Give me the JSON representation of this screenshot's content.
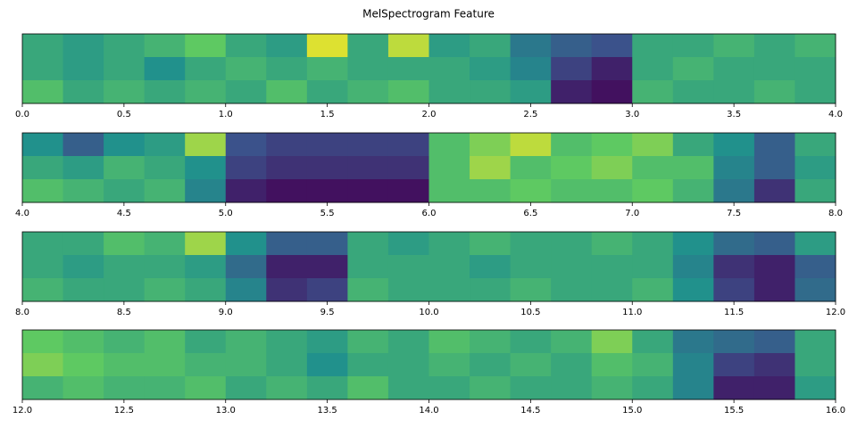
{
  "title": "MelSpectrogram Feature",
  "chart_data": [
    {
      "type": "heatmap",
      "colormap": "viridis",
      "xlim": [
        0,
        4
      ],
      "xticks": [
        {
          "value": 0,
          "label": "0.0"
        },
        0.5,
        {
          "value": 1,
          "label": "1.0"
        },
        1.5,
        {
          "value": 2,
          "label": "2.0"
        },
        2.5,
        {
          "value": 3,
          "label": "3.0"
        },
        3.5,
        {
          "value": 4,
          "label": "4.0"
        }
      ],
      "values": [
        [
          0.6,
          0.55,
          0.6,
          0.65,
          0.75,
          0.6,
          0.55,
          0.95,
          0.6,
          0.9,
          0.55,
          0.6,
          0.4,
          0.3,
          0.25,
          0.6,
          0.6,
          0.65,
          0.6,
          0.65
        ],
        [
          0.6,
          0.55,
          0.6,
          0.5,
          0.6,
          0.65,
          0.6,
          0.65,
          0.6,
          0.6,
          0.6,
          0.55,
          0.45,
          0.2,
          0.1,
          0.6,
          0.65,
          0.6,
          0.6,
          0.6
        ],
        [
          0.7,
          0.6,
          0.65,
          0.6,
          0.65,
          0.6,
          0.7,
          0.6,
          0.65,
          0.7,
          0.6,
          0.6,
          0.55,
          0.1,
          0.05,
          0.65,
          0.6,
          0.6,
          0.65,
          0.6
        ]
      ]
    },
    {
      "type": "heatmap",
      "colormap": "viridis",
      "xlim": [
        4,
        8
      ],
      "xticks": [
        {
          "value": 4,
          "label": "4.0"
        },
        4.5,
        {
          "value": 5,
          "label": "5.0"
        },
        5.5,
        {
          "value": 6,
          "label": "6.0"
        },
        6.5,
        {
          "value": 7,
          "label": "7.0"
        },
        7.5,
        {
          "value": 8,
          "label": "8.0"
        }
      ],
      "values": [
        [
          0.5,
          0.3,
          0.5,
          0.55,
          0.85,
          0.25,
          0.2,
          0.2,
          0.2,
          0.2,
          0.7,
          0.8,
          0.9,
          0.7,
          0.75,
          0.8,
          0.6,
          0.5,
          0.3,
          0.6
        ],
        [
          0.6,
          0.55,
          0.65,
          0.6,
          0.5,
          0.2,
          0.15,
          0.15,
          0.15,
          0.15,
          0.7,
          0.85,
          0.7,
          0.75,
          0.8,
          0.7,
          0.7,
          0.45,
          0.3,
          0.55
        ],
        [
          0.7,
          0.65,
          0.6,
          0.65,
          0.45,
          0.1,
          0.05,
          0.05,
          0.05,
          0.05,
          0.7,
          0.7,
          0.75,
          0.7,
          0.7,
          0.75,
          0.65,
          0.4,
          0.15,
          0.6
        ]
      ]
    },
    {
      "type": "heatmap",
      "colormap": "viridis",
      "xlim": [
        8,
        12
      ],
      "xticks": [
        {
          "value": 8,
          "label": "8.0"
        },
        8.5,
        {
          "value": 9,
          "label": "9.0"
        },
        9.5,
        {
          "value": 10,
          "label": "10.0"
        },
        10.5,
        {
          "value": 11,
          "label": "11.0"
        },
        11.5,
        {
          "value": 12,
          "label": "12.0"
        }
      ],
      "values": [
        [
          0.6,
          0.6,
          0.7,
          0.65,
          0.85,
          0.5,
          0.3,
          0.3,
          0.6,
          0.55,
          0.6,
          0.65,
          0.6,
          0.6,
          0.65,
          0.6,
          0.5,
          0.35,
          0.3,
          0.55
        ],
        [
          0.6,
          0.55,
          0.6,
          0.6,
          0.55,
          0.35,
          0.1,
          0.1,
          0.6,
          0.6,
          0.6,
          0.55,
          0.6,
          0.6,
          0.6,
          0.6,
          0.45,
          0.15,
          0.1,
          0.3
        ],
        [
          0.65,
          0.6,
          0.6,
          0.65,
          0.6,
          0.45,
          0.15,
          0.2,
          0.65,
          0.6,
          0.6,
          0.6,
          0.65,
          0.6,
          0.6,
          0.65,
          0.5,
          0.2,
          0.1,
          0.35
        ]
      ]
    },
    {
      "type": "heatmap",
      "colormap": "viridis",
      "xlim": [
        12,
        16
      ],
      "xticks": [
        {
          "value": 12,
          "label": "12.0"
        },
        12.5,
        {
          "value": 13,
          "label": "13.0"
        },
        13.5,
        {
          "value": 14,
          "label": "14.0"
        },
        14.5,
        {
          "value": 15,
          "label": "15.0"
        },
        15.5,
        {
          "value": 16,
          "label": "16.0"
        }
      ],
      "values": [
        [
          0.75,
          0.7,
          0.65,
          0.7,
          0.6,
          0.65,
          0.6,
          0.55,
          0.65,
          0.6,
          0.7,
          0.65,
          0.6,
          0.65,
          0.8,
          0.6,
          0.4,
          0.35,
          0.3,
          0.6
        ],
        [
          0.8,
          0.75,
          0.7,
          0.7,
          0.65,
          0.65,
          0.6,
          0.5,
          0.6,
          0.6,
          0.65,
          0.6,
          0.65,
          0.6,
          0.7,
          0.65,
          0.45,
          0.2,
          0.15,
          0.6
        ],
        [
          0.65,
          0.7,
          0.65,
          0.65,
          0.7,
          0.6,
          0.65,
          0.6,
          0.7,
          0.6,
          0.6,
          0.65,
          0.6,
          0.6,
          0.65,
          0.6,
          0.45,
          0.1,
          0.1,
          0.55
        ]
      ]
    }
  ]
}
